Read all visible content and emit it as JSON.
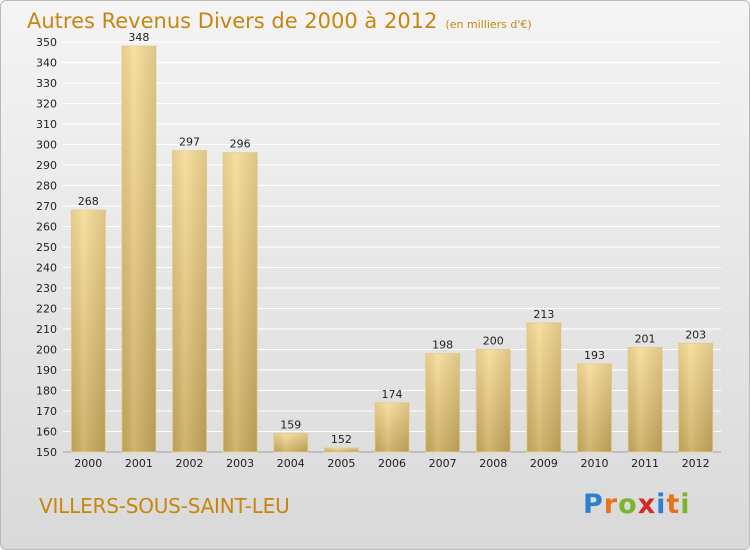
{
  "title": "Autres Revenus Divers de 2000 à 2012",
  "subtitle": "(en milliers d'€)",
  "commune": "VILLERS-SOUS-SAINT-LEU",
  "brand": {
    "text": "Proxiti",
    "letter_colors": [
      "#2e7fd1",
      "#e8731c",
      "#7bb52c",
      "#d4282c",
      "#2e7fd1",
      "#e8731c",
      "#7bb52c"
    ]
  },
  "colors": {
    "title": "#c8860e",
    "bar_light": "#f7dc97",
    "bar_dark": "#c9ab5d",
    "grid": "#ffffff",
    "axis_text": "#222222"
  },
  "chart_data": {
    "type": "bar",
    "categories": [
      "2000",
      "2001",
      "2002",
      "2003",
      "2004",
      "2005",
      "2006",
      "2007",
      "2008",
      "2009",
      "2010",
      "2011",
      "2012"
    ],
    "values": [
      268,
      348,
      297,
      296,
      159,
      152,
      174,
      198,
      200,
      213,
      193,
      201,
      203
    ],
    "ylim": [
      150,
      350
    ],
    "ytick_step": 10,
    "grid": true,
    "data_labels": true
  }
}
